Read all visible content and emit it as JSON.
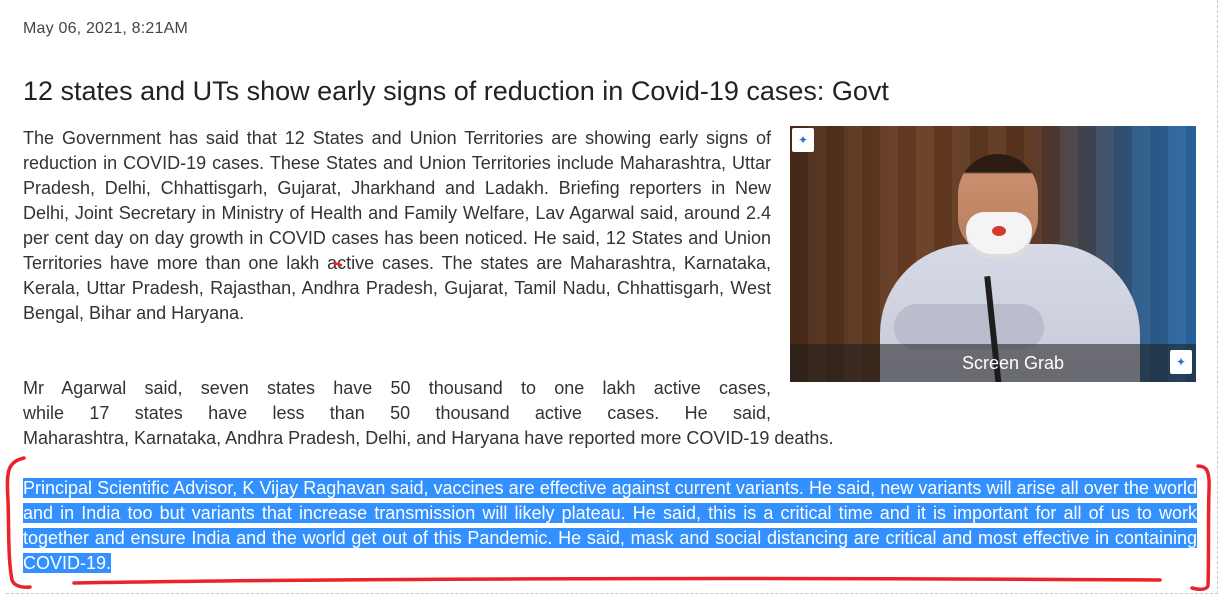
{
  "article": {
    "date": "May 06, 2021, 8:21AM",
    "headline": "12 states and UTs show early signs of reduction in Covid-19 cases: Govt",
    "paragraph1": "The Government has said that 12 States and Union Territories are showing early signs of reduction in COVID-19 cases. These States and Union Territories include Maharashtra, Uttar Pradesh, Delhi, Chhattisgarh, Gujarat, Jharkhand and Ladakh. Briefing reporters in New Delhi, Joint Secretary in Ministry of Health and Family Welfare, Lav Agarwal said, around 2.4 per cent day on day growth in COVID cases has been noticed. He said, 12 States and Union Territories have more than one lakh active cases. The states are Maharashtra, Karnataka, Kerala, Uttar Pradesh, Rajasthan, Andhra Pradesh, Gujarat, Tamil Nadu, Chhattisgarh, West Bengal, Bihar and Haryana.",
    "paragraph2_lines": [
      "Mr Agarwal said, seven states have 50 thousand to one lakh active cases,",
      "while 17 states have less than 50 thousand active cases. He said,",
      "Maharashtra, Karnataka, Andhra Pradesh, Delhi, and Haryana have reported more COVID-19 deaths."
    ],
    "paragraph3_selected": "Principal Scientific Advisor, K Vijay Raghavan said, vaccines are effective against current variants. He said, new variants will arise all over the world and in India too but variants that increase transmission will likely plateau. He said, this is a critical time and it is important for all of us to work together and ensure India and the world get out of this Pandemic. He said, mask and social distancing are critical and most effective in containing COVID-19. ",
    "image_caption": "Screen Grab"
  },
  "colors": {
    "selection": "#3390ff",
    "annotation": "#e8232a"
  }
}
